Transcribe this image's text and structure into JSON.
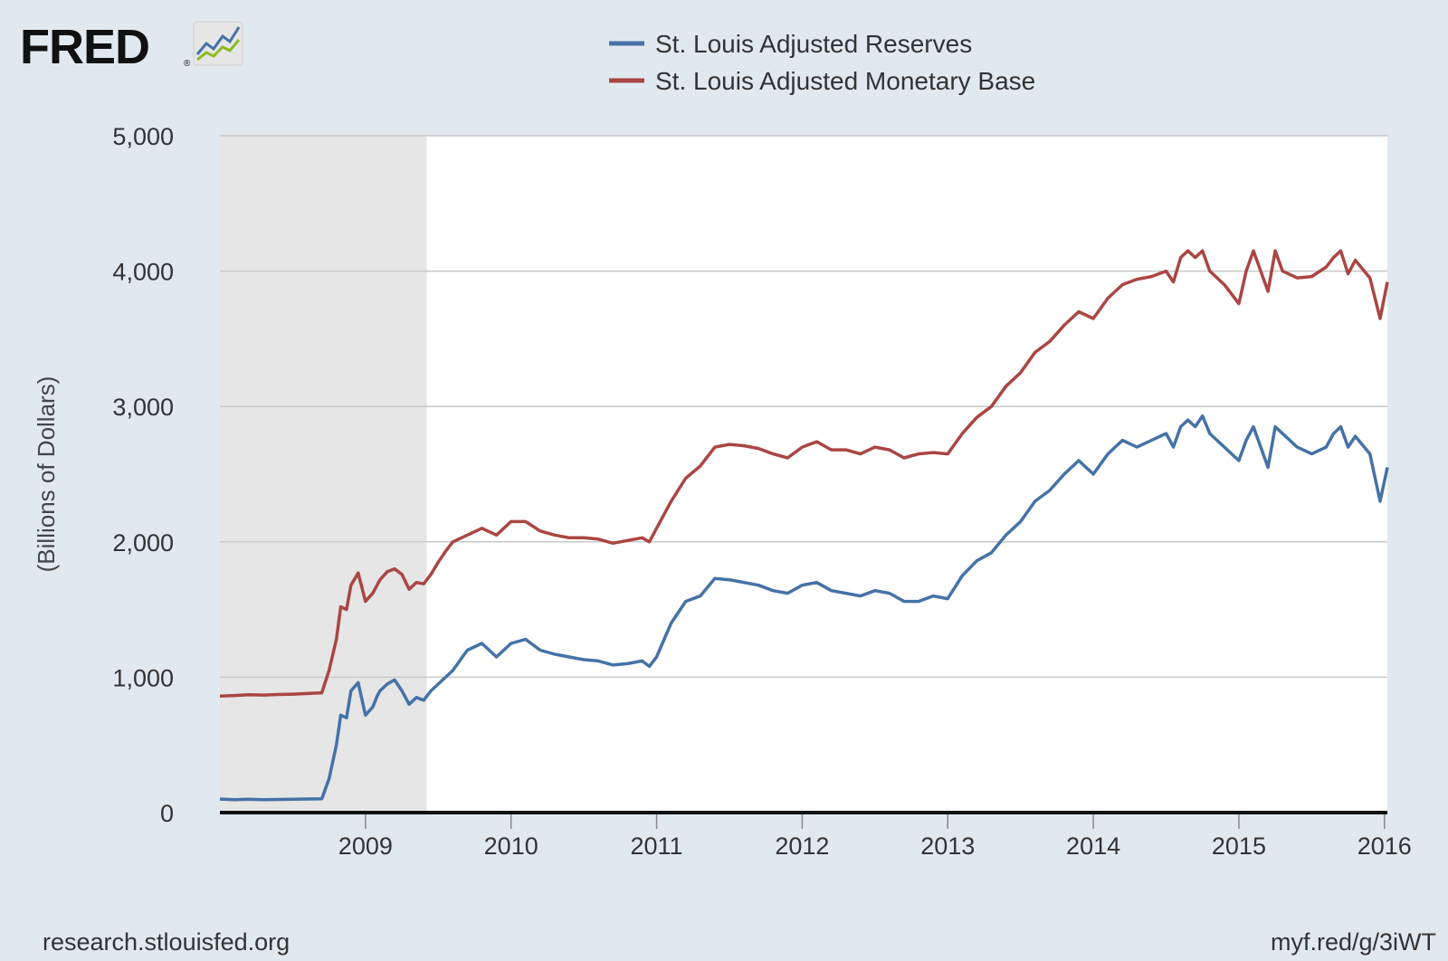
{
  "logo": {
    "text": "FRED",
    "reg": "®"
  },
  "footer": {
    "left": "research.stlouisfed.org",
    "right": "myf.red/g/3iWT"
  },
  "chart_data": {
    "type": "line",
    "title": "",
    "xlabel": "",
    "ylabel": "(Billions of Dollars)",
    "xlim": [
      2008.0,
      2016.02
    ],
    "ylim": [
      0,
      5000
    ],
    "yticks": [
      0,
      1000,
      2000,
      3000,
      4000,
      5000
    ],
    "ytick_labels": [
      "0",
      "1,000",
      "2,000",
      "3,000",
      "4,000",
      "5,000"
    ],
    "xticks": [
      2009,
      2010,
      2011,
      2012,
      2013,
      2014,
      2015,
      2016
    ],
    "xtick_labels": [
      "2009",
      "2010",
      "2011",
      "2012",
      "2013",
      "2014",
      "2015",
      "2016"
    ],
    "grid": true,
    "legend_position": "top-center",
    "recession": {
      "start": 2008.0,
      "end": 2009.42
    },
    "colors": {
      "background": "#e1e9f0",
      "plot": "#ffffff",
      "recession": "#e6e6e6",
      "grid": "#c9c9c9",
      "axis": "#111111",
      "text": "#333333"
    },
    "series": [
      {
        "name": "St. Louis Adjusted Reserves",
        "color": "#4572a7",
        "x": [
          2008.0,
          2008.1,
          2008.2,
          2008.3,
          2008.4,
          2008.5,
          2008.6,
          2008.7,
          2008.75,
          2008.8,
          2008.83,
          2008.87,
          2008.9,
          2008.95,
          2009.0,
          2009.05,
          2009.08,
          2009.1,
          2009.15,
          2009.2,
          2009.25,
          2009.3,
          2009.35,
          2009.4,
          2009.45,
          2009.5,
          2009.55,
          2009.6,
          2009.7,
          2009.8,
          2009.9,
          2010.0,
          2010.1,
          2010.2,
          2010.3,
          2010.4,
          2010.5,
          2010.6,
          2010.7,
          2010.8,
          2010.9,
          2010.95,
          2011.0,
          2011.1,
          2011.2,
          2011.3,
          2011.4,
          2011.5,
          2011.6,
          2011.7,
          2011.8,
          2011.9,
          2012.0,
          2012.1,
          2012.2,
          2012.3,
          2012.4,
          2012.5,
          2012.6,
          2012.7,
          2012.8,
          2012.9,
          2013.0,
          2013.1,
          2013.2,
          2013.3,
          2013.4,
          2013.5,
          2013.6,
          2013.7,
          2013.8,
          2013.9,
          2014.0,
          2014.1,
          2014.2,
          2014.3,
          2014.4,
          2014.5,
          2014.55,
          2014.6,
          2014.65,
          2014.7,
          2014.75,
          2014.8,
          2014.9,
          2015.0,
          2015.05,
          2015.1,
          2015.2,
          2015.25,
          2015.3,
          2015.4,
          2015.5,
          2015.6,
          2015.65,
          2015.7,
          2015.75,
          2015.8,
          2015.9,
          2015.97,
          2016.02
        ],
        "y": [
          100,
          95,
          98,
          95,
          97,
          98,
          100,
          102,
          250,
          500,
          720,
          700,
          900,
          960,
          720,
          780,
          860,
          900,
          950,
          980,
          900,
          800,
          850,
          830,
          900,
          950,
          1000,
          1050,
          1200,
          1250,
          1150,
          1250,
          1280,
          1200,
          1170,
          1150,
          1130,
          1120,
          1090,
          1100,
          1120,
          1080,
          1150,
          1400,
          1560,
          1600,
          1730,
          1720,
          1700,
          1680,
          1640,
          1620,
          1680,
          1700,
          1640,
          1620,
          1600,
          1640,
          1620,
          1560,
          1560,
          1600,
          1580,
          1750,
          1860,
          1920,
          2050,
          2150,
          2300,
          2380,
          2500,
          2600,
          2500,
          2650,
          2750,
          2700,
          2750,
          2800,
          2700,
          2850,
          2900,
          2850,
          2930,
          2800,
          2700,
          2600,
          2750,
          2850,
          2550,
          2850,
          2800,
          2700,
          2650,
          2700,
          2800,
          2850,
          2700,
          2780,
          2650,
          2300,
          2550
        ]
      },
      {
        "name": "St. Louis Adjusted Monetary Base",
        "color": "#aa4643",
        "x": [
          2008.0,
          2008.1,
          2008.2,
          2008.3,
          2008.4,
          2008.5,
          2008.6,
          2008.7,
          2008.75,
          2008.8,
          2008.83,
          2008.87,
          2008.9,
          2008.95,
          2009.0,
          2009.05,
          2009.08,
          2009.1,
          2009.15,
          2009.2,
          2009.25,
          2009.3,
          2009.35,
          2009.4,
          2009.45,
          2009.5,
          2009.55,
          2009.6,
          2009.7,
          2009.8,
          2009.9,
          2010.0,
          2010.1,
          2010.2,
          2010.3,
          2010.4,
          2010.5,
          2010.6,
          2010.7,
          2010.8,
          2010.9,
          2010.95,
          2011.0,
          2011.1,
          2011.2,
          2011.3,
          2011.4,
          2011.5,
          2011.6,
          2011.7,
          2011.8,
          2011.9,
          2012.0,
          2012.1,
          2012.2,
          2012.3,
          2012.4,
          2012.5,
          2012.6,
          2012.7,
          2012.8,
          2012.9,
          2013.0,
          2013.1,
          2013.2,
          2013.3,
          2013.4,
          2013.5,
          2013.6,
          2013.7,
          2013.8,
          2013.9,
          2014.0,
          2014.1,
          2014.2,
          2014.3,
          2014.4,
          2014.5,
          2014.55,
          2014.6,
          2014.65,
          2014.7,
          2014.75,
          2014.8,
          2014.9,
          2015.0,
          2015.05,
          2015.1,
          2015.2,
          2015.25,
          2015.3,
          2015.4,
          2015.5,
          2015.6,
          2015.65,
          2015.7,
          2015.75,
          2015.8,
          2015.9,
          2015.97,
          2016.02
        ],
        "y": [
          860,
          865,
          870,
          868,
          872,
          875,
          880,
          885,
          1050,
          1280,
          1520,
          1500,
          1680,
          1770,
          1560,
          1620,
          1680,
          1720,
          1780,
          1800,
          1760,
          1650,
          1700,
          1690,
          1760,
          1850,
          1930,
          2000,
          2050,
          2100,
          2050,
          2150,
          2150,
          2080,
          2050,
          2030,
          2030,
          2020,
          1990,
          2010,
          2030,
          2000,
          2100,
          2300,
          2470,
          2560,
          2700,
          2720,
          2710,
          2690,
          2650,
          2620,
          2700,
          2740,
          2680,
          2680,
          2650,
          2700,
          2680,
          2620,
          2650,
          2660,
          2650,
          2800,
          2920,
          3000,
          3150,
          3250,
          3400,
          3480,
          3600,
          3700,
          3650,
          3800,
          3900,
          3940,
          3960,
          4000,
          3920,
          4100,
          4150,
          4100,
          4150,
          4000,
          3900,
          3760,
          4000,
          4150,
          3850,
          4150,
          4000,
          3950,
          3960,
          4030,
          4100,
          4150,
          3980,
          4080,
          3950,
          3650,
          3920
        ]
      }
    ]
  }
}
